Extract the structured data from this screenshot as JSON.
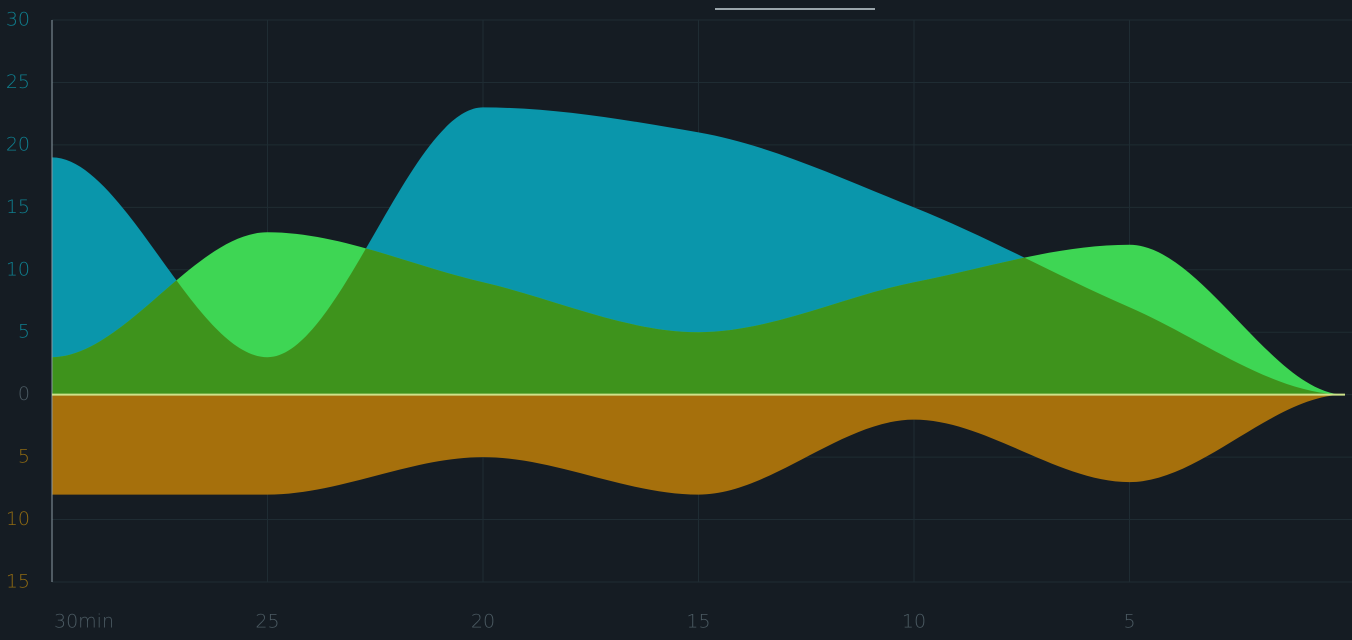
{
  "colors": {
    "background": "#151c23",
    "grid": "#1f2c33",
    "axis": "#8a9aa3",
    "tick_upper": "#0f7f8f",
    "tick_lower": "#8f6a12",
    "tick_x": "#4b5a62",
    "cyan_series": "#0a96ab",
    "green_series": "#3ed654",
    "dark_green_overlap": "#3e931c",
    "orange_series": "#a6700c",
    "zero_line": "#cde28a",
    "tab_indicator": "#9aa5ab"
  },
  "chart_data": {
    "type": "area",
    "x": [
      30,
      25,
      20,
      15,
      10,
      5,
      0
    ],
    "x_tick_labels": [
      "30min",
      "25",
      "20",
      "15",
      "10",
      "5"
    ],
    "y_tick_labels_upper": [
      "30",
      "25",
      "20",
      "15",
      "10",
      "5",
      "0"
    ],
    "y_tick_labels_lower": [
      "5",
      "10",
      "15"
    ],
    "ylim": [
      -15,
      30
    ],
    "grid": true,
    "series": [
      {
        "values": [
          19,
          3,
          23,
          21,
          15,
          7,
          0
        ],
        "color": "#0a96ab",
        "direction": "up"
      },
      {
        "values": [
          3,
          13,
          9,
          5,
          9,
          12,
          0
        ],
        "color": "#3ed654",
        "direction": "up"
      },
      {
        "values": [
          8,
          8,
          5,
          8,
          2,
          7,
          0
        ],
        "color": "#a6700c",
        "direction": "down"
      }
    ]
  }
}
